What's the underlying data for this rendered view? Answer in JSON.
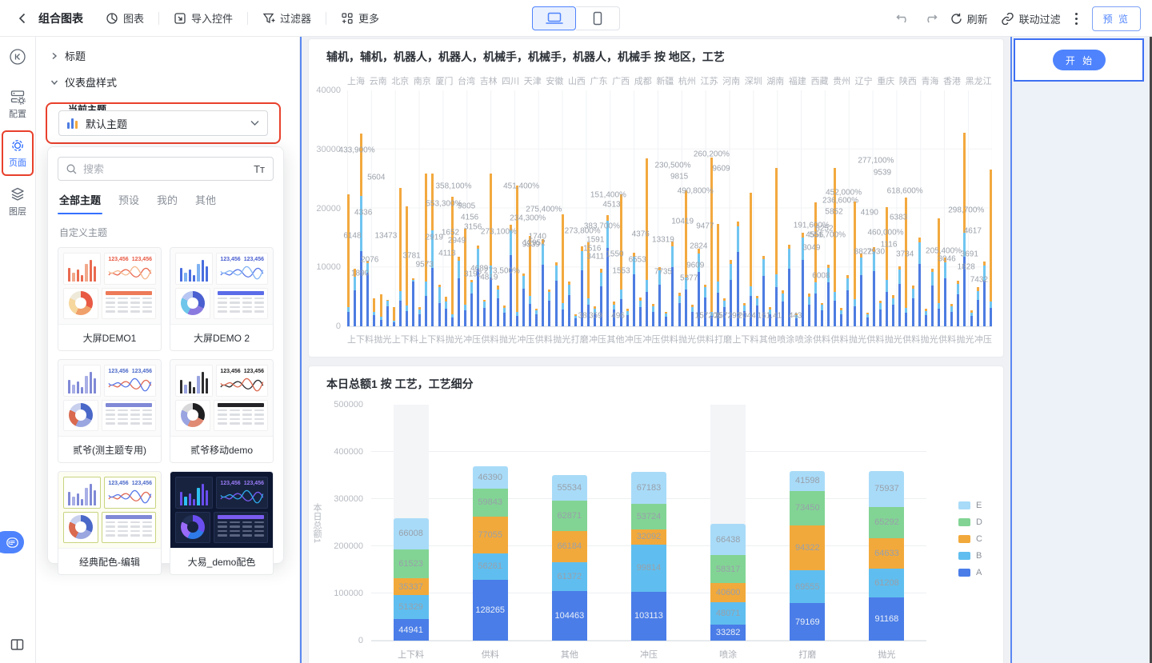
{
  "toolbar": {
    "title": "组合图表",
    "chart_btn": "图表",
    "import_btn": "导入控件",
    "filter_btn": "过滤器",
    "more_btn": "更多",
    "refresh": "刷新",
    "link_filter": "联动过滤",
    "preview": "预 览"
  },
  "rail": {
    "config": "配置",
    "page": "页面",
    "layers": "图层"
  },
  "panel": {
    "section_title": "标题",
    "section_style": "仪表盘样式",
    "current_theme": "当前主题",
    "theme_select": "默认主题",
    "search_placeholder": "搜索",
    "font_toggle": "Tт",
    "tabs": [
      "全部主题",
      "预设",
      "我的",
      "其他"
    ],
    "active_tab": "全部主题",
    "group_label": "自定义主题",
    "stat_sample": "123,456",
    "cards": [
      {
        "name": "大屏DEMO1",
        "dark": false,
        "prev_bg": "#fbfbfb",
        "tile_bg": "#ffffff",
        "tile_border": "#f0f0ef",
        "bar_a": "#e96a50",
        "bar_b": "#f2a88a",
        "line_a": "#e96a50",
        "line_b": "#f5b98f",
        "stat": "#e85a44",
        "header": "#ed7a58",
        "row": "#dcdee2",
        "donut": [
          "#e85a44",
          "#f0a06a",
          "#f6d79e",
          "#efe9da"
        ]
      },
      {
        "name": "大屏DEMO 2",
        "dark": false,
        "prev_bg": "#fbfbfb",
        "tile_bg": "#ffffff",
        "tile_border": "#f0f0f2",
        "bar_a": "#4a6ee0",
        "bar_b": "#7fb2f2",
        "line_a": "#5a79e8",
        "line_b": "#86b7f4",
        "stat": "#4a5fd0",
        "header": "#5b6ce8",
        "row": "#dcdee2",
        "donut": [
          "#4a5fd0",
          "#8a7ae0",
          "#6ec6ea",
          "#b7c6f2"
        ]
      },
      {
        "name": "贰爷(测主题专用)",
        "dark": false,
        "prev_bg": "#fbfbfb",
        "tile_bg": "#ffffff",
        "tile_border": "#f0f0f2",
        "bar_a": "#8089d6",
        "bar_b": "#a8aee6",
        "line_a": "#e06a55",
        "line_b": "#5a79e8",
        "stat": "#4a68c8",
        "header": "#8089d6",
        "row": "#dcdee2",
        "donut": [
          "#4a68c8",
          "#9aa6e0",
          "#d96a50",
          "#c8d0ee"
        ]
      },
      {
        "name": "贰爷移动demo",
        "dark": false,
        "prev_bg": "#fbfbfb",
        "tile_bg": "#ffffff",
        "tile_border": "#f0f0f2",
        "bar_a": "#2e2e30",
        "bar_b": "#9aa4e0",
        "line_a": "#2e2e30",
        "line_b": "#d96a50",
        "stat": "#1f1f22",
        "header": "#242428",
        "row": "#dcdee2",
        "donut": [
          "#1f1f22",
          "#e08a74",
          "#9aa4e0",
          "#d8d8da"
        ]
      },
      {
        "name": "经典配色-编辑",
        "dark": false,
        "prev_bg": "#fdfdf2",
        "tile_bg": "#ffffff",
        "tile_border": "#c9d47e",
        "bar_a": "#8089d6",
        "bar_b": "#a8aee6",
        "line_a": "#e06a55",
        "line_b": "#5a79e8",
        "stat": "#4a68c8",
        "header": "#8089d6",
        "row": "#dcdee2",
        "donut": [
          "#4a68c8",
          "#9aa6e0",
          "#d96a50",
          "#c8d0ee"
        ]
      },
      {
        "name": "大易_demo配色",
        "dark": true,
        "prev_bg": "#0e1731",
        "tile_bg": "#18233f",
        "tile_border": "#253154",
        "bar_a": "#6a4ef0",
        "bar_b": "#2ec0f0",
        "line_a": "#7a5cf4",
        "line_b": "#2ea8e8",
        "stat": "#9a7cf8",
        "header": "#7a5cf0",
        "row": "#5a6480",
        "donut": [
          "#6a4ef0",
          "#2e7ae8",
          "#9a6af8",
          "#223054"
        ]
      }
    ]
  },
  "right_panel": {
    "start": "开 始"
  },
  "chart_data": [
    {
      "type": "bar",
      "title": "辅机，辅机，机器人，机器人，机械手，机械手，机器人，机械手 按 地区，工艺",
      "regions": [
        "上海",
        "云南",
        "北京",
        "南京",
        "厦门",
        "台湾",
        "吉林",
        "四川",
        "天津",
        "安徽",
        "山西",
        "广东",
        "广西",
        "成都",
        "新疆",
        "杭州",
        "江苏",
        "河南",
        "深圳",
        "湖南",
        "福建",
        "西藏",
        "贵州",
        "辽宁",
        "重庆",
        "陕西",
        "青海",
        "香港",
        "黑龙江"
      ],
      "process_axis": [
        "上下料",
        "抛光",
        "上下料",
        "上下料",
        "抛光",
        "冲压",
        "供料",
        "抛光",
        "冲压",
        "供料",
        "抛光",
        "打磨",
        "冲压",
        "其他",
        "冲压",
        "冲压",
        "供料",
        "抛光",
        "供料",
        "打磨",
        "上下料",
        "其他",
        "喷涂",
        "喷涂",
        "供料",
        "供料",
        "抛光",
        "供料",
        "抛光",
        "供料",
        "抛光",
        "供料",
        "抛光",
        "冲压"
      ],
      "ylim": [
        0,
        40000
      ],
      "yticks": [
        "40000",
        "30000",
        "20000",
        "10000",
        "0"
      ],
      "colors": {
        "blue": "#4d7ce2",
        "light_blue": "#6fc5f1",
        "orange": "#f3a93f"
      },
      "bars": [
        [
          2400,
          800,
          19200
        ],
        [
          6100,
          2300,
          1300
        ],
        [
          12800,
          9300,
          10600
        ],
        [
          9100,
          1600,
          400
        ],
        [
          1900,
          600,
          2200
        ],
        [
          1100,
          500,
          3800
        ],
        [
          3400,
          900,
          200
        ],
        [
          700,
          300,
          2300
        ],
        [
          4400,
          1600,
          17400
        ],
        [
          2600,
          900,
          16800
        ],
        [
          7600,
          300,
          300
        ],
        [
          2100,
          800,
          400
        ],
        [
          5200,
          2400,
          18300
        ],
        [
          9900,
          6400,
          9600
        ],
        [
          4000,
          2600,
          500
        ],
        [
          3000,
          1200,
          800
        ],
        [
          1500,
          600,
          19900
        ],
        [
          8200,
          2900,
          700
        ],
        [
          2700,
          1000,
          12900
        ],
        [
          5600,
          1900,
          400
        ],
        [
          9700,
          3400,
          600
        ],
        [
          3100,
          1100,
          300
        ],
        [
          8300,
          2000,
          15600
        ],
        [
          4700,
          1500,
          700
        ],
        [
          2300,
          800,
          400
        ],
        [
          12100,
          4200,
          900
        ],
        [
          1700,
          700,
          21500
        ],
        [
          6400,
          2100,
          500
        ],
        [
          3800,
          1300,
          10200
        ],
        [
          2000,
          700,
          300
        ],
        [
          10400,
          3600,
          800
        ],
        [
          4300,
          1500,
          400
        ],
        [
          7700,
          2600,
          600
        ],
        [
          2900,
          1000,
          15100
        ],
        [
          5300,
          1800,
          500
        ],
        [
          1300,
          500,
          300
        ],
        [
          9500,
          3300,
          700
        ],
        [
          3600,
          1200,
          9400
        ],
        [
          2200,
          800,
          400
        ],
        [
          6800,
          2300,
          600
        ],
        [
          13300,
          4600,
          900
        ],
        [
          2800,
          900,
          500
        ],
        [
          4600,
          1600,
          16200
        ],
        [
          1900,
          700,
          400
        ],
        [
          8800,
          3000,
          700
        ],
        [
          3300,
          1100,
          500
        ],
        [
          5900,
          2000,
          20600
        ],
        [
          2500,
          900,
          400
        ],
        [
          7100,
          2400,
          600
        ],
        [
          1600,
          600,
          300
        ],
        [
          10100,
          3500,
          800
        ],
        [
          3900,
          1300,
          500
        ],
        [
          6200,
          2100,
          14800
        ],
        [
          2400,
          800,
          400
        ],
        [
          9200,
          3200,
          700
        ],
        [
          4900,
          1700,
          500
        ],
        [
          1800,
          600,
          26200
        ],
        [
          5700,
          1900,
          9800
        ],
        [
          3200,
          1100,
          400
        ],
        [
          7900,
          2700,
          600
        ],
        [
          12600,
          4300,
          900
        ],
        [
          2600,
          900,
          400
        ],
        [
          5100,
          1700,
          15900
        ],
        [
          3500,
          1200,
          500
        ],
        [
          8500,
          2900,
          600
        ],
        [
          2100,
          700,
          400
        ],
        [
          6600,
          2200,
          18100
        ],
        [
          4200,
          1400,
          500
        ],
        [
          9800,
          3400,
          700
        ],
        [
          1400,
          500,
          300
        ],
        [
          11200,
          3900,
          800
        ],
        [
          3700,
          1300,
          500
        ],
        [
          5500,
          1900,
          13600
        ],
        [
          2700,
          900,
          400
        ],
        [
          7400,
          2500,
          600
        ],
        [
          4400,
          1500,
          21000
        ],
        [
          2000,
          700,
          400
        ],
        [
          6100,
          2100,
          500
        ],
        [
          3400,
          1200,
          16500
        ],
        [
          8700,
          3000,
          700
        ],
        [
          1500,
          500,
          300
        ],
        [
          9400,
          3200,
          800
        ],
        [
          2900,
          1000,
          400
        ],
        [
          5800,
          2000,
          12400
        ],
        [
          3600,
          1200,
          500
        ],
        [
          7200,
          2400,
          600
        ],
        [
          2300,
          800,
          18700
        ],
        [
          4800,
          1600,
          500
        ],
        [
          10600,
          3700,
          800
        ],
        [
          1900,
          700,
          400
        ],
        [
          6900,
          2300,
          600
        ],
        [
          3000,
          1000,
          14300
        ],
        [
          8100,
          2800,
          700
        ],
        [
          2500,
          900,
          400
        ],
        [
          5400,
          1800,
          500
        ],
        [
          11800,
          4100,
          16900
        ],
        [
          1700,
          600,
          400
        ],
        [
          4500,
          1500,
          600
        ],
        [
          7700,
          2600,
          700
        ],
        [
          3100,
          1100,
          22400
        ]
      ],
      "labels": [
        [
          "433,900%",
          1.5,
          29800
        ],
        [
          "5604",
          4.5,
          25200
        ],
        [
          "6148",
          0.8,
          15300
        ],
        [
          "13473",
          6,
          15300
        ],
        [
          "4336",
          2.5,
          19300
        ],
        [
          "2076",
          3.5,
          11200
        ],
        [
          "1890",
          2,
          9000
        ],
        [
          "3781",
          10,
          12000
        ],
        [
          "9573",
          12,
          10500
        ],
        [
          "553,300%",
          15,
          20800
        ],
        [
          "358,100%",
          16.5,
          23700
        ],
        [
          "9805",
          18.5,
          20300
        ],
        [
          "4156",
          19,
          18500
        ],
        [
          "3156",
          19.5,
          16800
        ],
        [
          "1652",
          16,
          15800
        ],
        [
          "2949",
          17,
          14500
        ],
        [
          "2919",
          13.5,
          15000
        ],
        [
          "4113",
          15.5,
          12400
        ],
        [
          "4689",
          20.5,
          9800
        ],
        [
          "273,500%",
          24,
          9300
        ],
        [
          "4819",
          22,
          8300
        ],
        [
          "3192",
          19.5,
          8800
        ],
        [
          "451,400%",
          27,
          23700
        ],
        [
          "9539",
          28.5,
          13800
        ],
        [
          "275,400%",
          30.5,
          19800
        ],
        [
          "234,300%",
          28,
          18300
        ],
        [
          "273,100%",
          23.5,
          16000
        ],
        [
          "1740",
          29.5,
          15200
        ],
        [
          "12952",
          29,
          14100
        ],
        [
          "151,400%",
          40.5,
          22200
        ],
        [
          "4513",
          41,
          20600
        ],
        [
          "383,700%",
          39.5,
          17000
        ],
        [
          "273,800%",
          36.5,
          16200
        ],
        [
          "1591",
          38.5,
          14700
        ],
        [
          "1516",
          38,
          13200
        ],
        [
          "3411",
          38.5,
          11800
        ],
        [
          "1550",
          41.5,
          12200
        ],
        [
          "6553",
          45,
          11300
        ],
        [
          "1553",
          42.5,
          9400
        ],
        [
          "38",
          36.5,
          1800
        ],
        [
          "359",
          38.5,
          1800
        ],
        [
          "496",
          42,
          1800
        ],
        [
          "230,500%",
          50.5,
          27300
        ],
        [
          "9815",
          51.5,
          25300
        ],
        [
          "260,200%",
          56.5,
          29200
        ],
        [
          "9609",
          58,
          26700
        ],
        [
          "490,800%",
          54,
          22900
        ],
        [
          "10419",
          52,
          17700
        ],
        [
          "9477",
          55.5,
          16900
        ],
        [
          "4376",
          45.5,
          15600
        ],
        [
          "13319",
          49,
          14600
        ],
        [
          "2824",
          54.5,
          13500
        ],
        [
          "7735",
          49,
          9200
        ],
        [
          "9609",
          54,
          10300
        ],
        [
          "5377",
          53,
          8200
        ],
        [
          "157206",
          56,
          1800
        ],
        [
          "257292",
          59,
          1800
        ],
        [
          "2044",
          62,
          1800
        ],
        [
          "161.41",
          65.5,
          1800
        ],
        [
          "443",
          69.5,
          1800
        ],
        [
          "191,600%",
          72,
          17100
        ],
        [
          "4556",
          72.5,
          15400
        ],
        [
          "3049",
          72,
          13300
        ],
        [
          "6008",
          73.5,
          8500
        ],
        [
          "277,100%",
          82,
          28100
        ],
        [
          "9539",
          83,
          26100
        ],
        [
          "452,000%",
          77,
          22700
        ],
        [
          "5852",
          75.5,
          19400
        ],
        [
          "8252",
          74,
          16500
        ],
        [
          "551,700%",
          74.5,
          15400
        ],
        [
          "236,600%",
          76.5,
          21300
        ],
        [
          "4190",
          81,
          19300
        ],
        [
          "618,600%",
          86.5,
          22900
        ],
        [
          "6383",
          85.5,
          18500
        ],
        [
          "460,000%",
          83.5,
          15800
        ],
        [
          "1116",
          84,
          13800
        ],
        [
          "8822",
          80,
          12600
        ],
        [
          "7930",
          82,
          12600
        ],
        [
          "3734",
          86.5,
          12200
        ],
        [
          "205,400%",
          92.5,
          12700
        ],
        [
          "3691",
          96.5,
          12200
        ],
        [
          "298,700%",
          96,
          19600
        ],
        [
          "4617",
          97,
          16200
        ],
        [
          "1828",
          96,
          10100
        ],
        [
          "3046",
          93,
          11400
        ],
        [
          "7432",
          98,
          7900
        ]
      ]
    },
    {
      "type": "stacked-bar",
      "title": "本日总额1 按 工艺，工艺细分",
      "categories": [
        "上下料",
        "供料",
        "其他",
        "冲压",
        "喷涂",
        "打磨",
        "抛光"
      ],
      "series": [
        {
          "name": "A",
          "color": "#4a7de8",
          "values": [
            44941,
            128265,
            104463,
            103113,
            33282,
            79169,
            91168
          ]
        },
        {
          "name": "B",
          "color": "#5fbeef",
          "values": [
            51329,
            56261,
            61372,
            99814,
            48071,
            69555,
            61208
          ]
        },
        {
          "name": "C",
          "color": "#f2a93b",
          "values": [
            35337,
            77055,
            66184,
            32092,
            40600,
            94322,
            64633
          ]
        },
        {
          "name": "D",
          "color": "#82d494",
          "values": [
            61523,
            59843,
            62871,
            53724,
            58317,
            73450,
            65292
          ]
        },
        {
          "name": "E",
          "color": "#a8dbf8",
          "values": [
            66008,
            46390,
            55534,
            67183,
            66438,
            41598,
            75937
          ]
        }
      ],
      "legend_order": [
        "E",
        "D",
        "C",
        "B",
        "A"
      ],
      "ylabel": "本日总额1",
      "xlabel": "工艺",
      "ylim": [
        0,
        500000
      ],
      "yticks": [
        "500000",
        "400000",
        "300000",
        "200000",
        "100000",
        "0"
      ],
      "bg_bands": [
        0,
        4
      ]
    }
  ]
}
